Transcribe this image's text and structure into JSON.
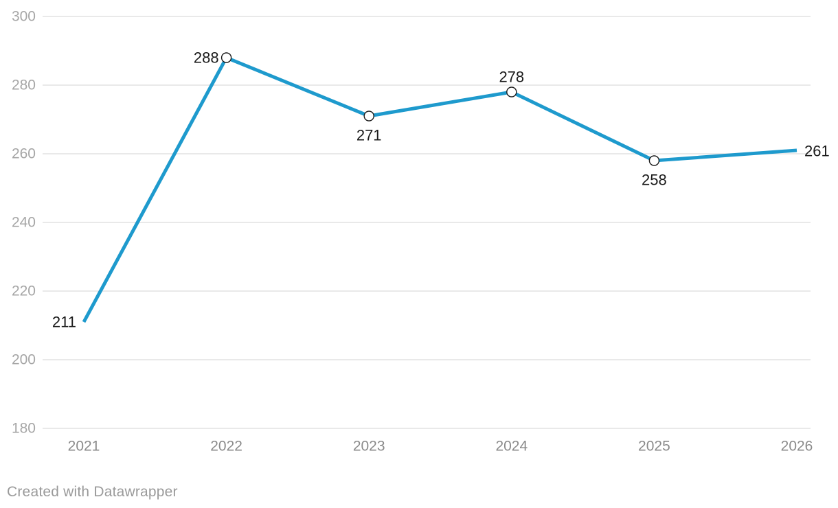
{
  "footer": {
    "credit": "Created with Datawrapper"
  },
  "chart_data": {
    "type": "line",
    "title": "",
    "xlabel": "",
    "ylabel": "",
    "x": [
      "2021",
      "2022",
      "2023",
      "2024",
      "2025",
      "2026"
    ],
    "values": [
      211,
      288,
      271,
      278,
      258,
      261
    ],
    "point_labels": [
      "211",
      "288",
      "271",
      "278",
      "258",
      "261"
    ],
    "label_positions": [
      "left",
      "left",
      "below",
      "above",
      "below",
      "right"
    ],
    "markers": [
      false,
      true,
      true,
      true,
      true,
      false
    ],
    "ylim": [
      180,
      300
    ],
    "yticks": [
      180,
      200,
      220,
      240,
      260,
      280,
      300
    ],
    "grid": "horizontal",
    "legend": "none",
    "colors": {
      "line": "#1e9acd",
      "marker_stroke": "#1a1a1a",
      "marker_fill": "#ffffff",
      "data_label": "#1a1a1a",
      "y_tick_label": "#a6a6a6",
      "x_tick_label": "#8a8a8a",
      "grid_line": "#e2e2e2",
      "credit_text": "#9a9a9a"
    }
  }
}
